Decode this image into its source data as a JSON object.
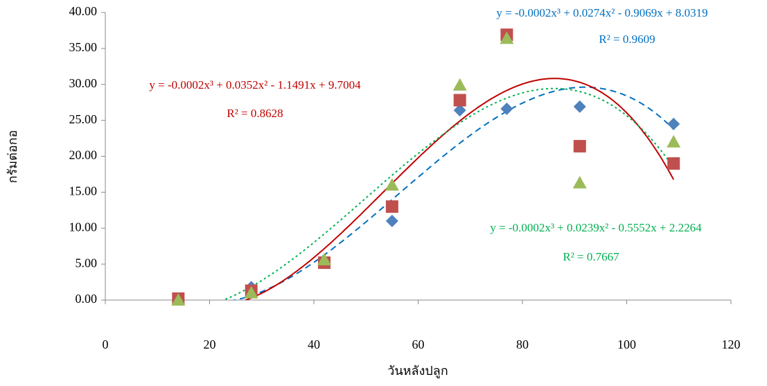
{
  "chart_data": {
    "type": "scatter",
    "x_label": "วันหลังปลูก",
    "y_label": "กรัมต่อกอ",
    "x": [
      14,
      28,
      42,
      55,
      68,
      77,
      91,
      109
    ],
    "series": [
      {
        "color": "#4f81bd",
        "marker": "diamond",
        "values": [
          0.1,
          1.8,
          5.3,
          11.0,
          26.4,
          26.6,
          26.9,
          24.5
        ],
        "trendline": {
          "equation": "y = -0.0002x³ + 0.0274x² - 0.9069x + 8.0319",
          "r_squared": "R² = 0.9609",
          "color": "#0070c0",
          "style": "dashed"
        }
      },
      {
        "color": "#c0504d",
        "marker": "square",
        "values": [
          0.2,
          1.3,
          5.2,
          13.0,
          27.8,
          36.9,
          21.4,
          19.0
        ],
        "trendline": {
          "equation": "y = -0.0002x³ + 0.0352x² - 1.1491x + 9.7004",
          "r_squared": "R² = 0.8628",
          "color": "#c00000",
          "style": "solid"
        }
      },
      {
        "color": "#9bbb59",
        "marker": "triangle",
        "values": [
          0.0,
          1.0,
          5.6,
          16.0,
          29.9,
          36.4,
          16.3,
          22.0
        ],
        "trendline": {
          "equation": "y = -0.0002x³ + 0.0239x² - 0.5552x + 2.2264",
          "r_squared": "R² = 0.7667",
          "color": "#00b050",
          "style": "dotted"
        }
      }
    ],
    "xlim": [
      0,
      120
    ],
    "xticks": [
      0,
      20,
      40,
      60,
      80,
      100,
      120
    ],
    "ylim": [
      0,
      40
    ],
    "yticks": [
      {
        "value": 0,
        "label": "0.00"
      },
      {
        "value": 5,
        "label": "5.00"
      },
      {
        "value": 10,
        "label": "10.00"
      },
      {
        "value": 15,
        "label": "15.00"
      },
      {
        "value": 20,
        "label": "20.00"
      },
      {
        "value": 25,
        "label": "25.00"
      },
      {
        "value": 30,
        "label": "30.00"
      },
      {
        "value": 35,
        "label": "35.00"
      },
      {
        "value": 40,
        "label": "40.00"
      }
    ],
    "grid": false
  }
}
